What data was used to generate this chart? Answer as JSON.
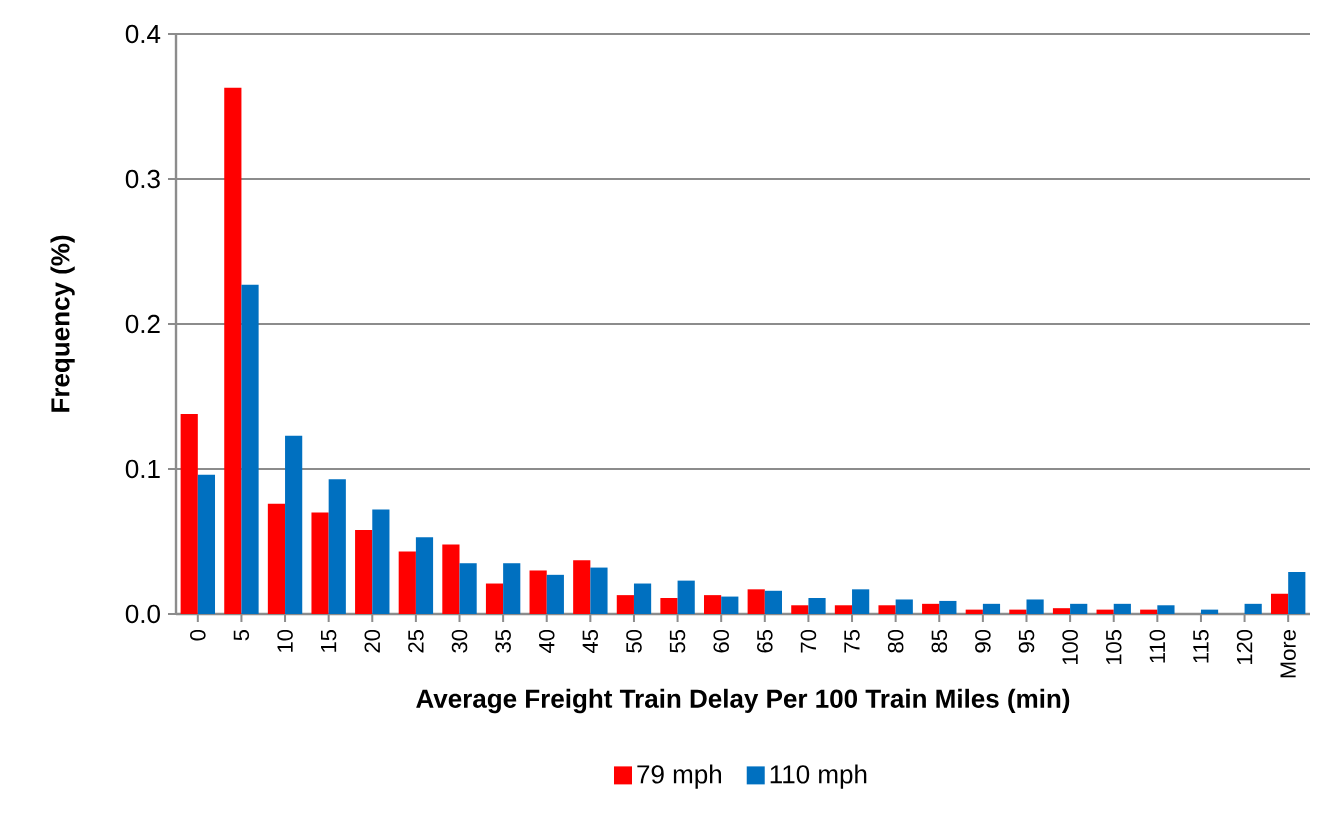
{
  "chart_data": {
    "type": "bar",
    "xlabel": "Average Freight Train Delay Per 100 Train Miles (min)",
    "ylabel": "Frequency (%)",
    "categories": [
      "0",
      "5",
      "10",
      "15",
      "20",
      "25",
      "30",
      "35",
      "40",
      "45",
      "50",
      "55",
      "60",
      "65",
      "70",
      "75",
      "80",
      "85",
      "90",
      "95",
      "100",
      "105",
      "110",
      "115",
      "120",
      "More"
    ],
    "series": [
      {
        "name": "79 mph",
        "color": "#ff0000",
        "values": [
          0.138,
          0.363,
          0.076,
          0.07,
          0.058,
          0.043,
          0.048,
          0.021,
          0.03,
          0.037,
          0.013,
          0.011,
          0.013,
          0.017,
          0.006,
          0.006,
          0.006,
          0.007,
          0.003,
          0.003,
          0.004,
          0.003,
          0.003,
          0,
          0,
          0.014
        ]
      },
      {
        "name": "110 mph",
        "color": "#0070c0",
        "values": [
          0.096,
          0.227,
          0.123,
          0.093,
          0.072,
          0.053,
          0.035,
          0.035,
          0.027,
          0.032,
          0.021,
          0.023,
          0.012,
          0.016,
          0.011,
          0.017,
          0.01,
          0.009,
          0.007,
          0.01,
          0.007,
          0.007,
          0.006,
          0.003,
          0.007,
          0.029
        ]
      }
    ],
    "ylim": [
      0,
      0.4
    ],
    "yticks": [
      {
        "value": 0,
        "label": "0.0"
      },
      0.1,
      0.2,
      0.3,
      0.4
    ],
    "grid": "y",
    "legend": "bottom"
  }
}
